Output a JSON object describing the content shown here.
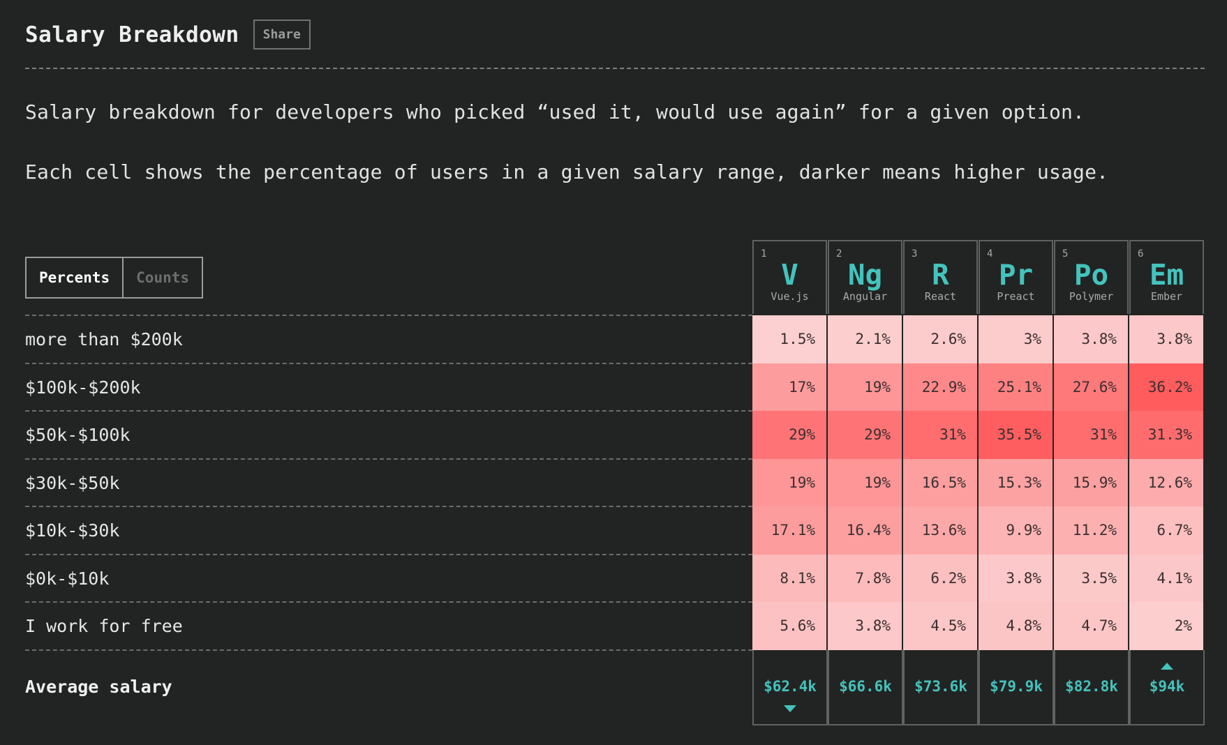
{
  "header": {
    "title": "Salary Breakdown",
    "share_label": "Share"
  },
  "description": [
    "Salary breakdown for developers who picked “used it, would use again” for a given option.",
    "Each cell shows the percentage of users in a given salary range, darker means higher usage."
  ],
  "toggle": {
    "percents_label": "Percents",
    "counts_label": "Counts",
    "selected": "Percents"
  },
  "colors": {
    "accent": "#44c3bd",
    "heat_low": "#fcd5d5",
    "heat_high": "#ff5c5e",
    "background": "#222423"
  },
  "chart_data": {
    "type": "heatmap",
    "columns": [
      {
        "rank": "1",
        "abbr": "V",
        "name": "Vue.js"
      },
      {
        "rank": "2",
        "abbr": "Ng",
        "name": "Angular"
      },
      {
        "rank": "3",
        "abbr": "R",
        "name": "React"
      },
      {
        "rank": "4",
        "abbr": "Pr",
        "name": "Preact"
      },
      {
        "rank": "5",
        "abbr": "Po",
        "name": "Polymer"
      },
      {
        "rank": "6",
        "abbr": "Em",
        "name": "Ember"
      }
    ],
    "rows": [
      "more than $200k",
      "$100k-$200k",
      "$50k-$100k",
      "$30k-$50k",
      "$10k-$30k",
      "$0k-$10k",
      "I work for free"
    ],
    "values": [
      [
        1.5,
        2.1,
        2.6,
        3,
        3.8,
        3.8
      ],
      [
        17,
        19,
        22.9,
        25.1,
        27.6,
        36.2
      ],
      [
        29,
        29,
        31,
        35.5,
        31,
        31.3
      ],
      [
        19,
        19,
        16.5,
        15.3,
        15.9,
        12.6
      ],
      [
        17.1,
        16.4,
        13.6,
        9.9,
        11.2,
        6.7
      ],
      [
        8.1,
        7.8,
        6.2,
        3.8,
        3.5,
        4.1
      ],
      [
        5.6,
        3.8,
        4.5,
        4.8,
        4.7,
        2
      ]
    ],
    "unit": "%",
    "average_label": "Average salary",
    "averages": [
      "$62.4k",
      "$66.6k",
      "$73.6k",
      "$79.9k",
      "$82.8k",
      "$94k"
    ],
    "average_min_index": 0,
    "average_max_index": 5
  }
}
